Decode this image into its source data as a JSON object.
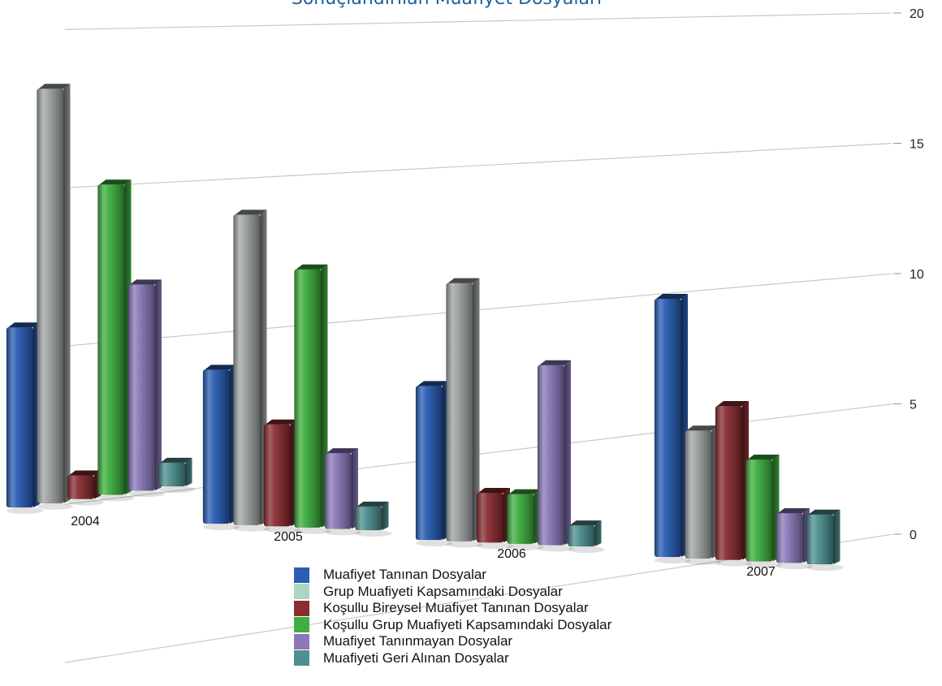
{
  "chart_data": {
    "type": "bar",
    "title": "Sonuçlandırılan Muafiyet Dosyaları",
    "categories": [
      "2004",
      "2005",
      "2006",
      "2007"
    ],
    "ylim": [
      0,
      20
    ],
    "yticks": [
      "0",
      "5",
      "10",
      "15",
      "20"
    ],
    "grid": true,
    "legend": "bottom",
    "series": [
      {
        "name": "Muafiyet Tanınan Dosyalar",
        "values": [
          7,
          6,
          6,
          10
        ],
        "color": "#2a5db3"
      },
      {
        "name": "Grup Muafiyeti Kapsamındaki Dosyalar",
        "values": [
          16,
          12,
          10,
          5
        ],
        "color": "#a9d7c4"
      },
      {
        "name": "Koşullu Bireysel Muafiyet Tanınan Dosyalar",
        "values": [
          1,
          4,
          2,
          6
        ],
        "color": "#8a2e33"
      },
      {
        "name": "Koşullu Grup Muafiyeti Kapsamındaki Dosyalar",
        "values": [
          12,
          10,
          2,
          4
        ],
        "color": "#3fae3f"
      },
      {
        "name": "Muafiyet Tanınmayan Dosyalar",
        "values": [
          8,
          3,
          7,
          2
        ],
        "color": "#8a78b8"
      },
      {
        "name": "Muafiyeti Geri Alınan Dosyalar",
        "values": [
          1,
          1,
          0,
          2
        ],
        "color": "#4f8f8f"
      }
    ],
    "bar_colors": {
      "grup_display": "#9ea3a3"
    }
  }
}
